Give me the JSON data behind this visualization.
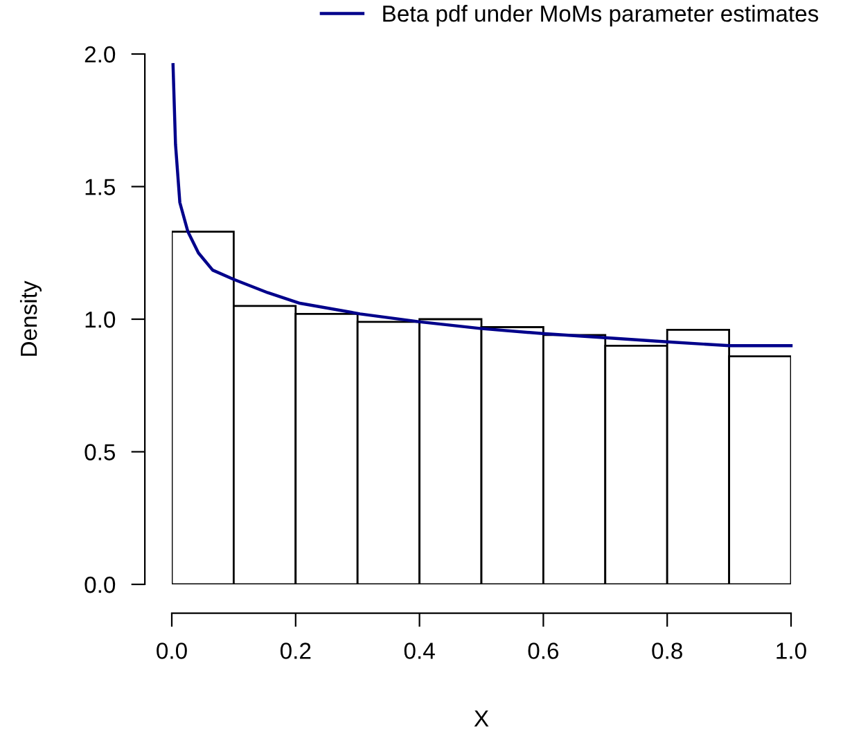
{
  "chart_data": {
    "type": "histogram",
    "xlabel": "X",
    "ylabel": "Density",
    "bins": [
      0,
      0.1,
      0.2,
      0.3,
      0.4,
      0.5,
      0.6,
      0.7,
      0.8,
      0.9,
      1.0
    ],
    "values": [
      1.33,
      1.05,
      1.02,
      0.99,
      1.0,
      0.97,
      0.94,
      0.9,
      0.96,
      0.86
    ],
    "color": "#ffffff",
    "series": [
      {
        "type": "line",
        "name": "Beta pdf under MoMs parameter estimates",
        "color": "#00008b",
        "x": [
          0.002,
          0.006,
          0.013,
          0.026,
          0.043,
          0.066,
          0.1,
          0.155,
          0.207,
          0.304,
          0.401,
          0.498,
          0.603,
          0.7,
          0.796,
          0.901,
          1.0
        ],
        "values": [
          1.96,
          1.66,
          1.44,
          1.33,
          1.25,
          1.185,
          1.15,
          1.1,
          1.06,
          1.02,
          0.99,
          0.965,
          0.945,
          0.93,
          0.915,
          0.9,
          0.9
        ]
      }
    ],
    "xlim": [
      0,
      1
    ],
    "ylim": [
      0,
      2
    ],
    "xticks": [
      {
        "value": 0,
        "label": "0.0"
      },
      0.2,
      0.4,
      0.6,
      0.8,
      {
        "value": 1,
        "label": "1.0"
      }
    ],
    "yticks": [
      {
        "value": 0,
        "label": "0.0"
      },
      0.5,
      {
        "value": 1,
        "label": "1.0"
      },
      1.5,
      {
        "value": 2,
        "label": "2.0"
      }
    ],
    "grid": false,
    "legend": "top right"
  }
}
